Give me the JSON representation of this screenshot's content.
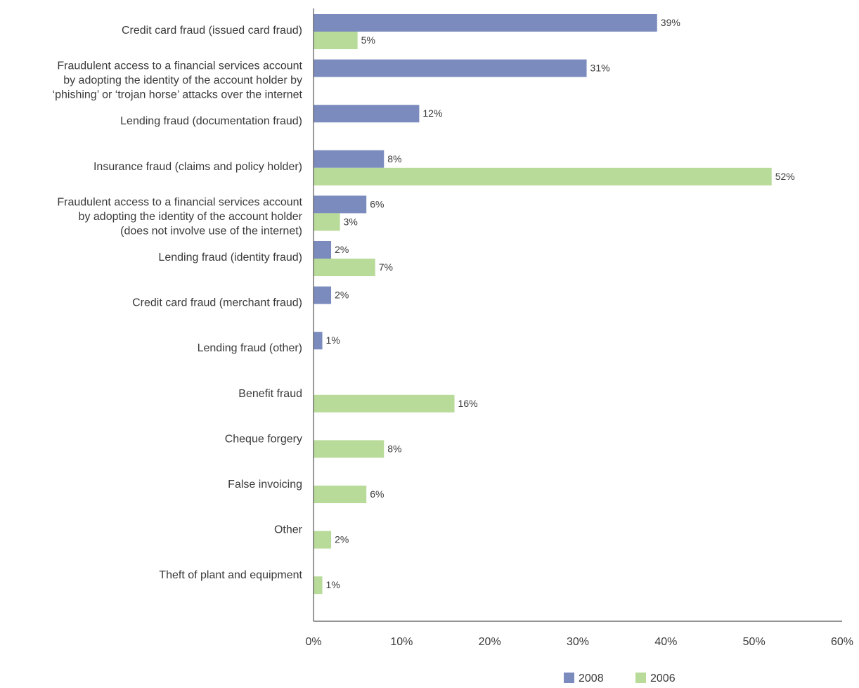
{
  "chart_data": {
    "type": "bar",
    "orientation": "horizontal",
    "title": "",
    "xlabel": "",
    "ylabel": "",
    "xlim": [
      0,
      60
    ],
    "x_ticks": [
      0,
      10,
      20,
      30,
      40,
      50,
      60
    ],
    "x_tick_labels": [
      "0%",
      "10%",
      "20%",
      "30%",
      "40%",
      "50%",
      "60%"
    ],
    "grid": false,
    "legend_position": "bottom-right",
    "categories": [
      {
        "lines": [
          "Credit card fraud (issued card fraud)"
        ]
      },
      {
        "lines": [
          "Fraudulent access to a financial services account",
          "by adopting the identity of the account holder by",
          "‘phishing’ or ‘trojan horse’ attacks over the internet"
        ]
      },
      {
        "lines": [
          "Lending fraud (documentation fraud)"
        ]
      },
      {
        "lines": [
          "Insurance fraud (claims and policy holder)"
        ]
      },
      {
        "lines": [
          "Fraudulent access to a financial services account",
          "by adopting the identity of the account holder",
          "(does not involve use of the internet)"
        ]
      },
      {
        "lines": [
          "Lending fraud (identity fraud)"
        ]
      },
      {
        "lines": [
          "Credit card fraud (merchant fraud)"
        ]
      },
      {
        "lines": [
          "Lending fraud (other)"
        ]
      },
      {
        "lines": [
          "Benefit fraud"
        ]
      },
      {
        "lines": [
          "Cheque forgery"
        ]
      },
      {
        "lines": [
          "False invoicing"
        ]
      },
      {
        "lines": [
          "Other"
        ]
      },
      {
        "lines": [
          "Theft of plant and equipment"
        ]
      }
    ],
    "series": [
      {
        "name": "2008",
        "color": "#7b8bbd",
        "values": [
          39,
          31,
          12,
          8,
          6,
          2,
          2,
          1,
          null,
          null,
          null,
          null,
          null
        ],
        "labels": [
          "39%",
          "31%",
          "12%",
          "8%",
          "6%",
          "2%",
          "2%",
          "1%",
          null,
          null,
          null,
          null,
          null
        ]
      },
      {
        "name": "2006",
        "color": "#b9db99",
        "values": [
          5,
          null,
          null,
          52,
          3,
          7,
          null,
          null,
          16,
          8,
          6,
          2,
          1
        ],
        "labels": [
          "5%",
          null,
          null,
          "52%",
          "3%",
          "7%",
          null,
          null,
          "16%",
          "8%",
          "6%",
          "2%",
          "1%"
        ]
      }
    ],
    "axis_color": "#555555"
  }
}
